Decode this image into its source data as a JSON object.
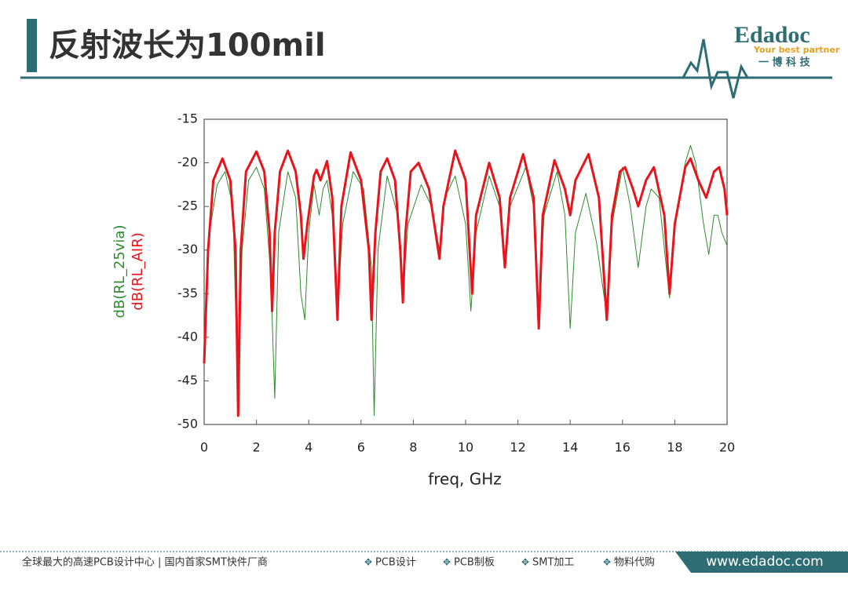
{
  "header": {
    "title": "反射波长为100mil",
    "logo": "Edadoc",
    "logo_tagline": "Your best partner",
    "logo_cn": "一 博 科 技"
  },
  "chart_data": {
    "type": "line",
    "xlabel": "freq, GHz",
    "xlim": [
      0,
      20
    ],
    "xticks": [
      0,
      2,
      4,
      6,
      8,
      10,
      12,
      14,
      16,
      18,
      20
    ],
    "ylim": [
      -50,
      -15
    ],
    "yticks": [
      -50,
      -45,
      -40,
      -35,
      -30,
      -25,
      -20,
      -15
    ],
    "grid": false,
    "series": [
      {
        "name": "dB(RL_25via)",
        "color": "#2e8b2e",
        "width": 1,
        "x": [
          0,
          0.2,
          0.5,
          0.8,
          1.1,
          1.3,
          1.45,
          1.7,
          2.0,
          2.3,
          2.55,
          2.7,
          2.85,
          3.2,
          3.5,
          3.7,
          3.85,
          4.0,
          4.2,
          4.4,
          4.55,
          4.7,
          4.9,
          5.1,
          5.3,
          5.7,
          6.1,
          6.4,
          6.5,
          6.65,
          7.0,
          7.4,
          7.6,
          7.8,
          8.3,
          8.7,
          9.0,
          9.2,
          9.6,
          10.0,
          10.2,
          10.4,
          10.9,
          11.3,
          11.5,
          11.7,
          12.3,
          12.6,
          12.8,
          13.0,
          13.5,
          13.8,
          14.0,
          14.2,
          14.6,
          15.0,
          15.4,
          15.6,
          16.0,
          16.3,
          16.6,
          16.9,
          17.1,
          17.4,
          17.8,
          18.0,
          18.4,
          18.6,
          18.8,
          19.1,
          19.3,
          19.5,
          19.65,
          19.8,
          20
        ],
        "values": [
          -41,
          -28,
          -22.5,
          -21,
          -25,
          -48,
          -30,
          -22,
          -20.5,
          -23,
          -33,
          -47,
          -28,
          -21,
          -24,
          -35,
          -38,
          -28,
          -22.5,
          -26,
          -23,
          -22,
          -26,
          -37,
          -27,
          -21,
          -23,
          -32,
          -49,
          -30,
          -21.5,
          -26,
          -35,
          -27,
          -22.5,
          -25,
          -30,
          -24,
          -21.5,
          -27,
          -37,
          -28,
          -21.5,
          -25,
          -31,
          -25,
          -20.5,
          -25,
          -37,
          -26,
          -21,
          -26,
          -39,
          -28,
          -23.5,
          -29,
          -37.5,
          -27,
          -20.5,
          -25,
          -32,
          -25,
          -23,
          -24,
          -35.5,
          -27,
          -20,
          -18,
          -20,
          -27,
          -30.5,
          -26,
          -26,
          -28,
          -29.5
        ]
      },
      {
        "name": "dB(RL_AIR)",
        "color": "#e8141c",
        "width": 3,
        "x": [
          0,
          0.15,
          0.35,
          0.7,
          1.0,
          1.2,
          1.3,
          1.4,
          1.6,
          2.0,
          2.3,
          2.5,
          2.6,
          2.7,
          2.9,
          3.2,
          3.5,
          3.7,
          3.8,
          3.95,
          4.2,
          4.3,
          4.45,
          4.7,
          4.9,
          5.1,
          5.25,
          5.6,
          6.0,
          6.3,
          6.4,
          6.55,
          6.75,
          7.0,
          7.3,
          7.5,
          7.6,
          7.7,
          7.9,
          8.2,
          8.6,
          8.9,
          9.0,
          9.15,
          9.6,
          10.0,
          10.25,
          10.4,
          10.9,
          11.3,
          11.5,
          11.7,
          12.2,
          12.6,
          12.8,
          12.95,
          13.4,
          13.8,
          14.0,
          14.2,
          14.7,
          15.1,
          15.4,
          15.6,
          15.9,
          16.1,
          16.4,
          16.6,
          16.9,
          17.2,
          17.6,
          17.8,
          18.0,
          18.4,
          18.6,
          18.9,
          19.2,
          19.5,
          19.7,
          19.9,
          20
        ],
        "values": [
          -43,
          -30,
          -22,
          -19.5,
          -22,
          -30,
          -49,
          -30,
          -21,
          -18.7,
          -21,
          -28,
          -37,
          -28,
          -21,
          -18.6,
          -21,
          -26,
          -31,
          -27,
          -21.5,
          -20.8,
          -22,
          -19.8,
          -24,
          -38,
          -25,
          -18.8,
          -22,
          -30,
          -38,
          -28,
          -21,
          -19.5,
          -22,
          -30,
          -36,
          -28,
          -21,
          -20,
          -23,
          -29,
          -31,
          -25,
          -18.6,
          -22,
          -35,
          -26,
          -20,
          -24,
          -32,
          -24,
          -19,
          -24,
          -39,
          -26,
          -19.7,
          -23,
          -26,
          -22,
          -19,
          -24,
          -38,
          -26,
          -21,
          -20.5,
          -23,
          -25,
          -22,
          -20.5,
          -26,
          -35,
          -27,
          -20.5,
          -19.5,
          -22,
          -24,
          -21,
          -20.5,
          -23,
          -26
        ]
      }
    ]
  },
  "footer": {
    "slogan": "全球最大的高速PCB设计中心 | 国内首家SMT快件厂商",
    "links": [
      "PCB设计",
      "PCB制板",
      "SMT加工",
      "物料代购"
    ],
    "url": "www.edadoc.com"
  }
}
